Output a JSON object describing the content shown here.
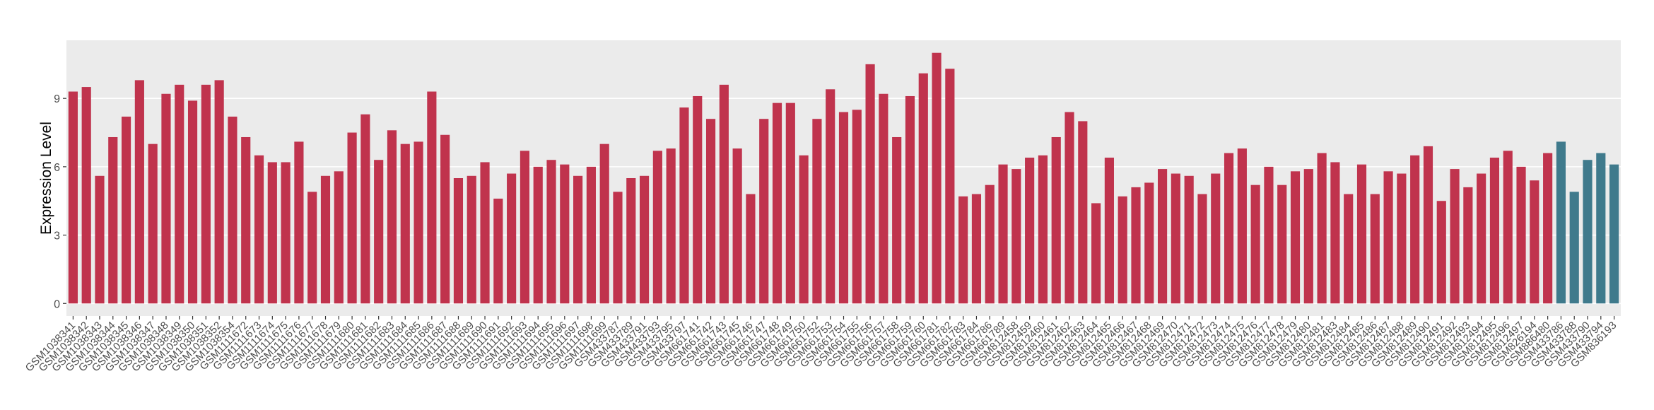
{
  "chart_data": {
    "type": "bar",
    "y_label": "Expression Level",
    "categories": [
      "GSM1038341",
      "GSM1038342",
      "GSM1038343",
      "GSM1038344",
      "GSM1038345",
      "GSM1038346",
      "GSM1038347",
      "GSM1038348",
      "GSM1038349",
      "GSM1038350",
      "GSM1038351",
      "GSM1038352",
      "GSM1038354",
      "GSM1111672",
      "GSM1111673",
      "GSM1111674",
      "GSM1111675",
      "GSM1111676",
      "GSM1111677",
      "GSM1111678",
      "GSM1111679",
      "GSM1111680",
      "GSM1111681",
      "GSM1111682",
      "GSM1111683",
      "GSM1111684",
      "GSM1111685",
      "GSM1111686",
      "GSM1111687",
      "GSM1111688",
      "GSM1111689",
      "GSM1111690",
      "GSM1111691",
      "GSM1111692",
      "GSM1111693",
      "GSM1111694",
      "GSM1111695",
      "GSM1111696",
      "GSM1111697",
      "GSM1111698",
      "GSM1111699",
      "GSM433787",
      "GSM433789",
      "GSM433791",
      "GSM433793",
      "GSM433795",
      "GSM433797",
      "GSM661741",
      "GSM661742",
      "GSM661743",
      "GSM661745",
      "GSM661746",
      "GSM661747",
      "GSM661748",
      "GSM661749",
      "GSM661750",
      "GSM661752",
      "GSM661753",
      "GSM661754",
      "GSM661755",
      "GSM661756",
      "GSM661757",
      "GSM661758",
      "GSM661759",
      "GSM661760",
      "GSM661781",
      "GSM661782",
      "GSM661783",
      "GSM661784",
      "GSM661786",
      "GSM661789",
      "GSM812458",
      "GSM812459",
      "GSM812460",
      "GSM812461",
      "GSM812462",
      "GSM812463",
      "GSM812464",
      "GSM812465",
      "GSM812466",
      "GSM812467",
      "GSM812468",
      "GSM812469",
      "GSM812470",
      "GSM812471",
      "GSM812472",
      "GSM812473",
      "GSM812474",
      "GSM812475",
      "GSM812476",
      "GSM812477",
      "GSM812478",
      "GSM812479",
      "GSM812480",
      "GSM812481",
      "GSM812483",
      "GSM812484",
      "GSM812485",
      "GSM812486",
      "GSM812487",
      "GSM812488",
      "GSM812489",
      "GSM812490",
      "GSM812491",
      "GSM812492",
      "GSM812493",
      "GSM812494",
      "GSM812495",
      "GSM812496",
      "GSM812497",
      "GSM826194",
      "GSM886480",
      "GSM433786",
      "GSM433788",
      "GSM433790",
      "GSM433794",
      "GSM836193"
    ],
    "values": [
      9.3,
      9.5,
      5.6,
      7.3,
      8.2,
      9.8,
      7.0,
      9.2,
      9.6,
      8.9,
      9.6,
      9.8,
      8.2,
      7.3,
      6.5,
      6.2,
      6.2,
      7.1,
      4.9,
      5.6,
      5.8,
      7.5,
      8.3,
      6.3,
      7.6,
      7.0,
      7.1,
      9.3,
      7.4,
      5.5,
      5.6,
      6.2,
      4.6,
      5.7,
      6.7,
      6.0,
      6.3,
      6.1,
      5.6,
      6.0,
      7.0,
      4.9,
      5.5,
      5.6,
      6.7,
      6.8,
      8.6,
      9.1,
      8.1,
      9.6,
      6.8,
      4.8,
      8.1,
      8.8,
      8.8,
      6.5,
      8.1,
      9.4,
      8.4,
      8.5,
      10.5,
      9.2,
      7.3,
      9.1,
      10.1,
      11.0,
      10.3,
      4.7,
      4.8,
      5.2,
      6.1,
      5.9,
      6.4,
      6.5,
      7.3,
      8.4,
      8.0,
      4.4,
      6.4,
      4.7,
      5.1,
      5.3,
      5.9,
      5.7,
      5.6,
      4.8,
      5.7,
      6.6,
      6.8,
      5.2,
      6.0,
      5.2,
      5.8,
      5.9,
      6.6,
      6.2,
      4.8,
      6.1,
      4.8,
      5.8,
      5.7,
      6.5,
      6.9,
      4.5,
      5.9,
      5.1,
      5.7,
      6.4,
      6.7,
      6.0,
      5.4,
      6.6,
      7.1,
      4.9,
      6.3,
      6.6,
      6.1
    ],
    "colors": [
      "#c0334d",
      "#c0334d",
      "#c0334d",
      "#c0334d",
      "#c0334d",
      "#c0334d",
      "#c0334d",
      "#c0334d",
      "#c0334d",
      "#c0334d",
      "#c0334d",
      "#c0334d",
      "#c0334d",
      "#c0334d",
      "#c0334d",
      "#c0334d",
      "#c0334d",
      "#c0334d",
      "#c0334d",
      "#c0334d",
      "#c0334d",
      "#c0334d",
      "#c0334d",
      "#c0334d",
      "#c0334d",
      "#c0334d",
      "#c0334d",
      "#c0334d",
      "#c0334d",
      "#c0334d",
      "#c0334d",
      "#c0334d",
      "#c0334d",
      "#c0334d",
      "#c0334d",
      "#c0334d",
      "#c0334d",
      "#c0334d",
      "#c0334d",
      "#c0334d",
      "#c0334d",
      "#c0334d",
      "#c0334d",
      "#c0334d",
      "#c0334d",
      "#c0334d",
      "#c0334d",
      "#c0334d",
      "#c0334d",
      "#c0334d",
      "#c0334d",
      "#c0334d",
      "#c0334d",
      "#c0334d",
      "#c0334d",
      "#c0334d",
      "#c0334d",
      "#c0334d",
      "#c0334d",
      "#c0334d",
      "#c0334d",
      "#c0334d",
      "#c0334d",
      "#c0334d",
      "#c0334d",
      "#c0334d",
      "#c0334d",
      "#c0334d",
      "#c0334d",
      "#c0334d",
      "#c0334d",
      "#c0334d",
      "#c0334d",
      "#c0334d",
      "#c0334d",
      "#c0334d",
      "#c0334d",
      "#c0334d",
      "#c0334d",
      "#c0334d",
      "#c0334d",
      "#c0334d",
      "#c0334d",
      "#c0334d",
      "#c0334d",
      "#c0334d",
      "#c0334d",
      "#c0334d",
      "#c0334d",
      "#c0334d",
      "#c0334d",
      "#c0334d",
      "#c0334d",
      "#c0334d",
      "#c0334d",
      "#c0334d",
      "#c0334d",
      "#c0334d",
      "#c0334d",
      "#c0334d",
      "#c0334d",
      "#c0334d",
      "#c0334d",
      "#c0334d",
      "#c0334d",
      "#c0334d",
      "#c0334d",
      "#c0334d",
      "#c0334d",
      "#c0334d",
      "#c0334d",
      "#c0334d",
      "#3f7a8c",
      "#3f7a8c",
      "#3f7a8c",
      "#3f7a8c",
      "#3f7a8c"
    ],
    "ylim": [
      -0.55,
      11.55
    ],
    "yticks": [
      0,
      3,
      6,
      9
    ],
    "grid": true
  }
}
